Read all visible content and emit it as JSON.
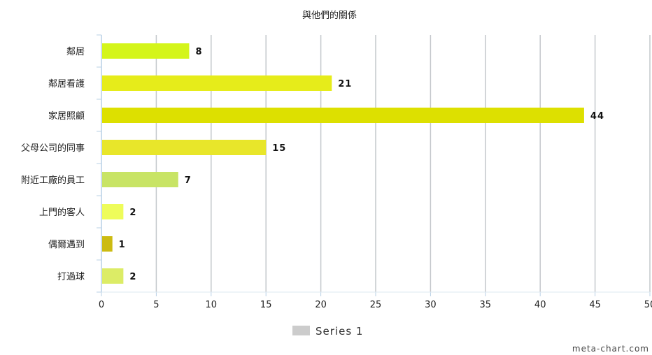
{
  "chart_data": {
    "type": "bar",
    "orientation": "horizontal",
    "title": "與他們的關係",
    "categories": [
      "鄰居",
      "鄰居看護",
      "家居照顧",
      "父母公司的同事",
      "附近工廠的員工",
      "上門的客人",
      "偶爾遇到",
      "打過球"
    ],
    "series": [
      {
        "name": "Series 1",
        "values": [
          8,
          21,
          44,
          15,
          7,
          2,
          1,
          2
        ]
      }
    ],
    "bar_colors": [
      "#d4f51a",
      "#e6ec1a",
      "#dde000",
      "#e8e62a",
      "#c8e465",
      "#eefc5a",
      "#ccbb12",
      "#dcec66"
    ],
    "legend_color": "#cccccc",
    "xlim": [
      0,
      50
    ],
    "xticks": [
      0,
      5,
      10,
      15,
      20,
      25,
      30,
      35,
      40,
      45,
      50
    ],
    "grid": "vertical",
    "legend_position": "bottom",
    "xlabel": "",
    "ylabel": ""
  },
  "credit": "meta-chart.com"
}
